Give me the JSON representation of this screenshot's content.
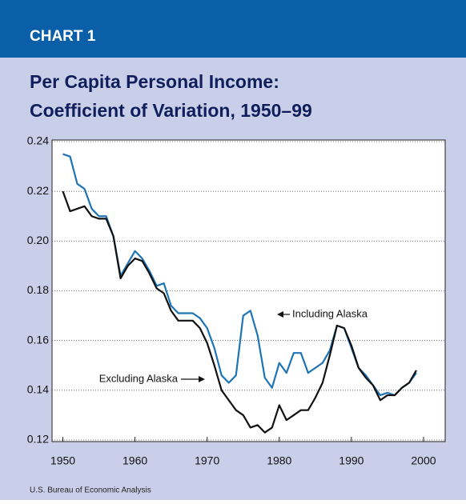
{
  "chart_data": {
    "type": "line",
    "label": "CHART 1",
    "title": [
      "Per Capita Personal Income:",
      "Coefficient of Variation, 1950–99"
    ],
    "source": "U.S. Bureau of Economic Analysis",
    "x": [
      1950,
      1951,
      1952,
      1953,
      1954,
      1955,
      1956,
      1957,
      1958,
      1959,
      1960,
      1961,
      1962,
      1963,
      1964,
      1965,
      1966,
      1967,
      1968,
      1969,
      1970,
      1971,
      1972,
      1973,
      1974,
      1975,
      1976,
      1977,
      1978,
      1979,
      1980,
      1981,
      1982,
      1983,
      1984,
      1985,
      1986,
      1987,
      1988,
      1989,
      1990,
      1991,
      1992,
      1993,
      1994,
      1995,
      1996,
      1997,
      1998,
      1999
    ],
    "series": [
      {
        "name": "Including Alaska",
        "color": "#1f74b5",
        "values": [
          0.235,
          0.234,
          0.223,
          0.221,
          0.213,
          0.21,
          0.21,
          0.202,
          0.186,
          0.191,
          0.196,
          0.193,
          0.188,
          0.182,
          0.183,
          0.174,
          0.171,
          0.171,
          0.171,
          0.169,
          0.165,
          0.157,
          0.146,
          0.143,
          0.146,
          0.17,
          0.172,
          0.162,
          0.145,
          0.141,
          0.151,
          0.147,
          0.155,
          0.155,
          0.147,
          0.149,
          0.151,
          0.156,
          0.166,
          0.165,
          0.157,
          0.149,
          0.146,
          0.142,
          0.138,
          0.139,
          0.138,
          0.141,
          0.143,
          0.147
        ]
      },
      {
        "name": "Excluding Alaska",
        "color": "#111111",
        "values": [
          0.22,
          0.212,
          0.213,
          0.214,
          0.21,
          0.209,
          0.209,
          0.202,
          0.185,
          0.19,
          0.193,
          0.192,
          0.187,
          0.181,
          0.179,
          0.172,
          0.168,
          0.168,
          0.168,
          0.165,
          0.159,
          0.15,
          0.14,
          0.136,
          0.132,
          0.13,
          0.125,
          0.126,
          0.123,
          0.125,
          0.134,
          0.128,
          0.13,
          0.132,
          0.132,
          0.137,
          0.143,
          0.154,
          0.166,
          0.165,
          0.158,
          0.149,
          0.145,
          0.142,
          0.136,
          0.138,
          0.138,
          0.141,
          0.143,
          0.148
        ]
      }
    ],
    "xlim": [
      1948.5,
      2003
    ],
    "xticks": [
      1950,
      1960,
      1970,
      1980,
      1990,
      2000
    ],
    "ylim": [
      0.12,
      0.24
    ],
    "yticks": [
      0.12,
      0.14,
      0.16,
      0.18,
      {
        "value": 0.2,
        "label": "0.20"
      },
      0.22,
      0.24
    ],
    "grid": true
  }
}
